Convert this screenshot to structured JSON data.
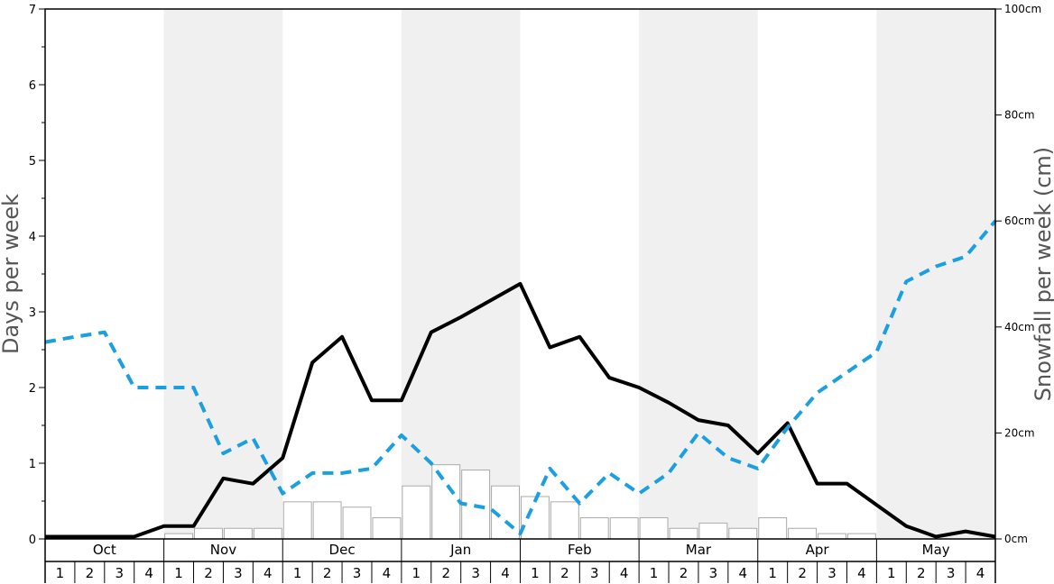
{
  "chart_data": {
    "type": "bar",
    "ylabel_left": "Days per week",
    "ylabel_right": "Snowfall per week (cm)",
    "months": [
      "Oct",
      "Nov",
      "Dec",
      "Jan",
      "Feb",
      "Mar",
      "Apr",
      "May"
    ],
    "weeks": [
      "1",
      "2",
      "3",
      "4"
    ],
    "ylim_left": [
      0,
      7
    ],
    "yticks_left": [
      "0",
      "1",
      "2",
      "3",
      "4",
      "5",
      "6",
      "7"
    ],
    "ylim_right": [
      0,
      100
    ],
    "yticks_right": [
      "0cm",
      "20cm",
      "40cm",
      "60cm",
      "80cm",
      "100cm"
    ],
    "colors": {
      "shade": "#f0f0f0",
      "bar_fill": "#ffffff",
      "bar_stroke": "#aaaaaa",
      "solid_line": "#000000",
      "dashed_line": "#1a9fe0"
    },
    "series": [
      {
        "kind": "bar",
        "axis": "right",
        "unit": "cm",
        "values": [
          0,
          0,
          0,
          0,
          1,
          2,
          2,
          2,
          7,
          7,
          6,
          4,
          10,
          14,
          13,
          10,
          8,
          7,
          4,
          4,
          4,
          2,
          3,
          2,
          4,
          2,
          1,
          1,
          0,
          0,
          0,
          0
        ]
      },
      {
        "kind": "line",
        "style": "solid",
        "axis": "left",
        "values": [
          0.03,
          0.03,
          0.03,
          0.03,
          0.17,
          0.17,
          0.8,
          0.73,
          1.07,
          2.33,
          2.67,
          1.83,
          1.83,
          2.73,
          2.93,
          3.15,
          3.37,
          2.53,
          2.67,
          2.13,
          2.0,
          1.8,
          1.57,
          1.5,
          1.13,
          1.53,
          0.73,
          0.73,
          0.45,
          0.17,
          0.03,
          0.1,
          0.03
        ]
      },
      {
        "kind": "line",
        "style": "dashed",
        "axis": "left",
        "values": [
          2.6,
          2.67,
          2.73,
          2.0,
          2.0,
          2.0,
          1.13,
          1.33,
          0.6,
          0.87,
          0.87,
          0.93,
          1.37,
          1.0,
          0.47,
          0.4,
          0.07,
          0.93,
          0.47,
          0.87,
          0.6,
          0.87,
          1.4,
          1.07,
          0.93,
          1.47,
          1.93,
          2.2,
          2.47,
          3.4,
          3.6,
          3.73,
          4.2
        ]
      }
    ]
  }
}
